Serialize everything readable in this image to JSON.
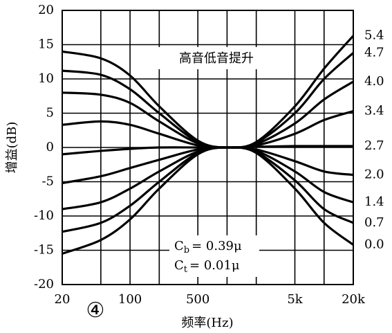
{
  "chart_data": {
    "type": "line",
    "title": "高音低音提升",
    "xlabel": "频率(Hz)",
    "ylabel": "增益(dB)",
    "figure_label": "④",
    "annotations": [
      {
        "symbol": "C",
        "sub": "b",
        "text": "= 0.39μ"
      },
      {
        "symbol": "C",
        "sub": "t",
        "text": "= 0.01μ"
      }
    ],
    "xscale": "log",
    "xlim": [
      20,
      20000
    ],
    "xticks": [
      20,
      100,
      500,
      {
        "value": 5000,
        "label": "5k"
      },
      {
        "value": 20000,
        "label": "20k"
      }
    ],
    "xgrid": [
      20,
      50,
      100,
      200,
      500,
      1000,
      2000,
      5000,
      10000,
      20000
    ],
    "ylim": [
      -20,
      20
    ],
    "yticks": [
      20,
      15,
      10,
      5,
      0,
      -5,
      -10,
      -15,
      -20
    ],
    "grid": true,
    "legend": "line-end",
    "x": [
      20,
      50,
      100,
      200,
      500,
      1000,
      2000,
      5000,
      10000,
      20000
    ],
    "series": [
      {
        "name": "5.4",
        "color": "#000000",
        "values": [
          14,
          13,
          10.5,
          6,
          1,
          0,
          0.8,
          6,
          11.5,
          16.3
        ]
      },
      {
        "name": "4.7",
        "color": "#000000",
        "values": [
          11.2,
          10.6,
          8.5,
          5,
          0.8,
          0,
          0.7,
          5,
          10,
          13.8
        ]
      },
      {
        "name": "4.0",
        "color": "#000000",
        "values": [
          8,
          7.7,
          6.5,
          3.8,
          0.6,
          0,
          0.5,
          3.5,
          7,
          9.6
        ]
      },
      {
        "name": "3.4",
        "color": "#000000",
        "values": [
          3.3,
          3.8,
          3.3,
          2,
          0.3,
          0,
          0.3,
          2,
          4,
          5.3
        ]
      },
      {
        "name": "2.7",
        "color": "#000000",
        "values": [
          -1,
          -0.5,
          -0.2,
          0,
          0,
          0,
          0.1,
          0.2,
          0.2,
          0.2
        ]
      },
      {
        "name": "2.0",
        "color": "#000000",
        "values": [
          -5.2,
          -4.2,
          -3,
          -1.8,
          -0.3,
          0,
          -0.3,
          -2,
          -3.5,
          -4
        ]
      },
      {
        "name": "1.4",
        "color": "#000000",
        "values": [
          -9,
          -8,
          -6,
          -3.5,
          -0.6,
          0,
          -0.5,
          -3.5,
          -6.5,
          -8
        ]
      },
      {
        "name": "0.7",
        "color": "#000000",
        "values": [
          -12.3,
          -11,
          -8.5,
          -5,
          -0.8,
          0,
          -0.7,
          -4.8,
          -9,
          -11
        ]
      },
      {
        "name": "0.0",
        "color": "#000000",
        "values": [
          -15.5,
          -13.5,
          -10.5,
          -6,
          -1,
          0,
          -0.8,
          -6,
          -11,
          -14.2
        ]
      }
    ]
  }
}
